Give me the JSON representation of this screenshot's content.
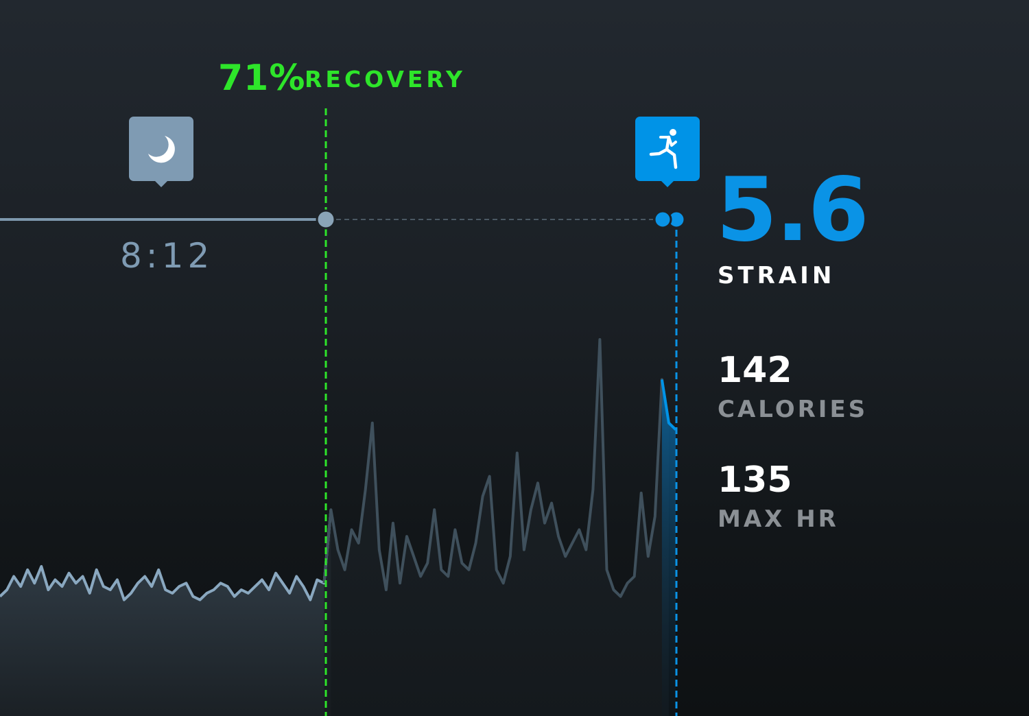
{
  "recovery": {
    "percent": "71%",
    "label": "RECOVERY",
    "color": "#2ee52a"
  },
  "sleep": {
    "icon": "moon-icon",
    "duration": "8:12",
    "color": "#7f9bb3"
  },
  "activity": {
    "icon": "running-person-icon",
    "color": "#0093e7"
  },
  "strain": {
    "value": "5.6",
    "label": "STRAIN",
    "color": "#0a93e6"
  },
  "stats": [
    {
      "value": "142",
      "label": "CALORIES"
    },
    {
      "value": "135",
      "label": "MAX HR"
    }
  ],
  "chart_data": {
    "type": "line",
    "hr_bpm": [
      58,
      60,
      64,
      61,
      66,
      62,
      67,
      60,
      63,
      61,
      65,
      62,
      64,
      59,
      66,
      61,
      60,
      63,
      57,
      59,
      62,
      64,
      61,
      66,
      60,
      59,
      61,
      62,
      58,
      57,
      59,
      60,
      62,
      61,
      58,
      60,
      59,
      61,
      63,
      60,
      65,
      62,
      59,
      64,
      61,
      57,
      63,
      62,
      84,
      72,
      66,
      78,
      74,
      90,
      110,
      72,
      60,
      80,
      62,
      76,
      70,
      64,
      68,
      84,
      66,
      64,
      78,
      68,
      66,
      74,
      88,
      94,
      66,
      62,
      70,
      101,
      72,
      84,
      92,
      80,
      86,
      76,
      70,
      74,
      78,
      72,
      90,
      135,
      66,
      60,
      58,
      62,
      64,
      89,
      70,
      82,
      123,
      110,
      108
    ],
    "segments": [
      {
        "phase": "sleep",
        "color": "#8aa8c0"
      },
      {
        "phase": "awake",
        "color": "#3f505c"
      },
      {
        "phase": "activity",
        "color": "#0093e7"
      }
    ]
  }
}
